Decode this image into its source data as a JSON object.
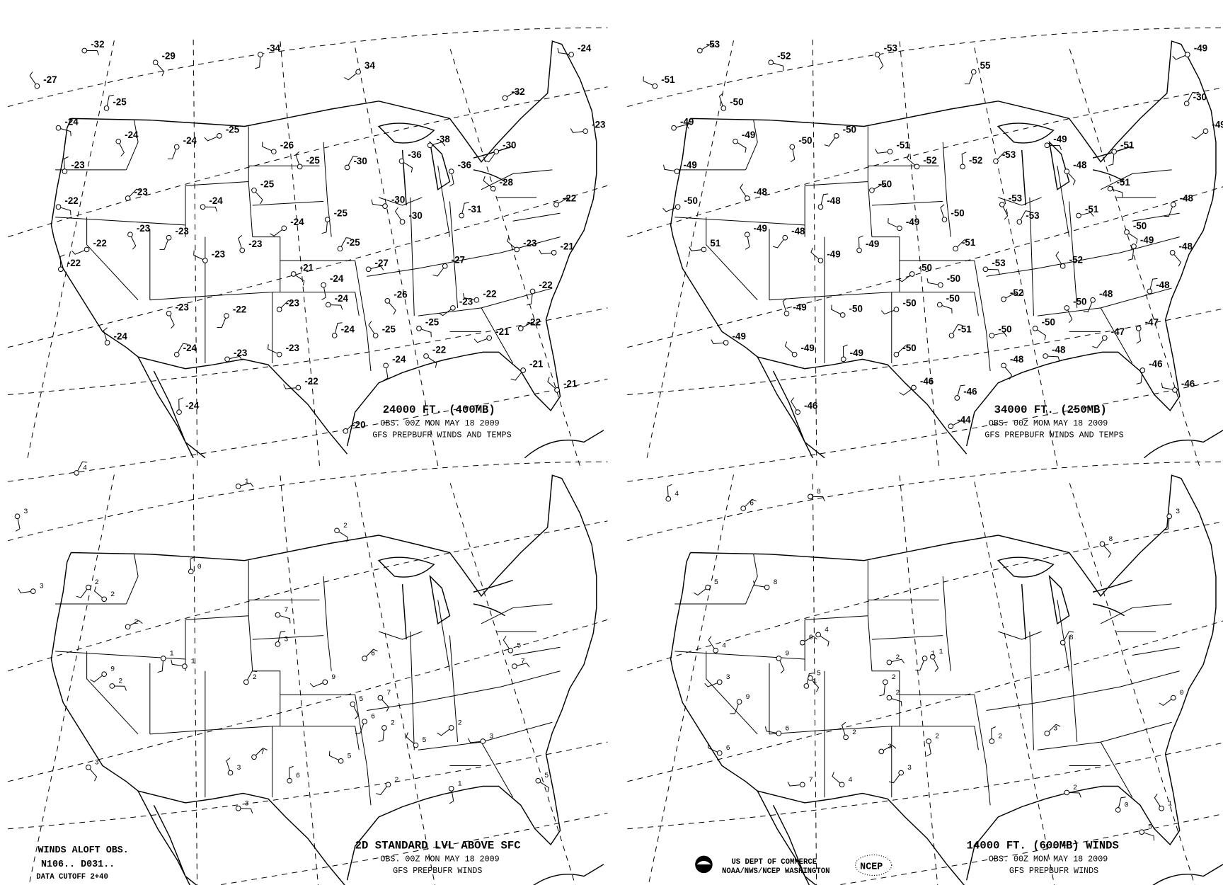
{
  "panels": [
    {
      "title": "24000 FT. (400MB)",
      "obs": "OBS.  00Z MON MAY 18 2009",
      "source": "GFS PREPBUFR WINDS AND TEMPS",
      "temps": [
        "-32",
        "-29",
        "-34",
        "34",
        "-24",
        "-27",
        "-25",
        "-32",
        "-24",
        "-24",
        "-24",
        "-25",
        "-26",
        "-25",
        "-30",
        "-38",
        "-36",
        "-36",
        "-30",
        "-23",
        "-28",
        "-23",
        "-23",
        "-24",
        "-25",
        "-25",
        "-24",
        "-30",
        "-30",
        "-31",
        "-22",
        "-22",
        "-23",
        "-23",
        "-22",
        "-23",
        "-23",
        "-25",
        "-27",
        "-21",
        "-24",
        "-27",
        "-21",
        "-23",
        "-22",
        "-23",
        "-24",
        "-26",
        "-22",
        "-23",
        "-22",
        "-25",
        "-24",
        "-22",
        "-25",
        "-23",
        "-22",
        "-21",
        "-23",
        "-24",
        "-24",
        "-23",
        "-22",
        "-24",
        "-21",
        "-22",
        "-21",
        "-24",
        "-20"
      ]
    },
    {
      "title": "34000 FT. (250MB)",
      "obs": "OBS.  00Z MON MAY 18 2009",
      "source": "GFS PREPBUFR WINDS AND TEMPS",
      "temps": [
        "-53",
        "-52",
        "-53",
        "55",
        "-49",
        "-51",
        "-50",
        "-30",
        "-49",
        "-49",
        "-50",
        "-50",
        "-51",
        "-52",
        "-52",
        "-53",
        "-49",
        "-48",
        "-51",
        "-49",
        "-49",
        "-48",
        "-48",
        "-50",
        "-51",
        "-53",
        "-48",
        "-50",
        "-49",
        "-50",
        "-53",
        "-51",
        "-50",
        "-49",
        "-48",
        "51",
        "-49",
        "-49",
        "-51",
        "-53",
        "-48",
        "-49",
        "-50",
        "-50",
        "-52",
        "-48",
        "-52",
        "-50",
        "-50",
        "-48",
        "-50",
        "-50",
        "-49",
        "-51",
        "-50",
        "-50",
        "-47",
        "-47",
        "-49",
        "-49",
        "-49",
        "-50",
        "-48",
        "-48",
        "-46",
        "-46",
        "-46",
        "-46",
        "-46",
        "-44"
      ]
    },
    {
      "title": "2D STANDARD LVL ABOVE SFC",
      "obs": "OBS.  00Z MON MAY 18 2009",
      "source": "GFS PREPBUFR WINDS",
      "speeds": [
        "4",
        "1",
        "2",
        "3",
        "2",
        "3",
        "2",
        "0",
        "6",
        "2",
        "7",
        "1",
        "9",
        "1",
        "5",
        "3",
        "2",
        "7",
        "5",
        "6",
        "9",
        "5",
        "3",
        "2",
        "7",
        "5",
        "1",
        "2",
        "3",
        "5",
        "6",
        "7",
        "3",
        "3",
        "2",
        "2"
      ]
    },
    {
      "title": "14000 FT. (600MB) WINDS",
      "obs": "OBS.  00Z MON MAY 18 2009",
      "source": "GFS PREPBUFR WINDS",
      "speeds": [
        "4",
        "6",
        "8",
        "8",
        "3",
        "5",
        "8",
        "4",
        "1",
        "0",
        "2",
        "1",
        "9",
        "3",
        "6",
        "2",
        "8",
        "2",
        "4",
        "2",
        "3",
        "7",
        "4",
        "2",
        "3",
        "2",
        "5",
        "2",
        "0",
        "6",
        "1",
        "0",
        "3",
        "5",
        "9",
        "1"
      ]
    }
  ],
  "legend": {
    "line1": "WINDS ALOFT OBS.",
    "line2": "N106.. D031..",
    "line3": "DATA CUTOFF 2+40"
  },
  "agency": {
    "line1": "US DEPT OF COMMERCE",
    "line2": "NOAA/NWS/NCEP WASHINGTON",
    "logo_text": "NCEP",
    "noaa_logo_text": "NOAA"
  }
}
